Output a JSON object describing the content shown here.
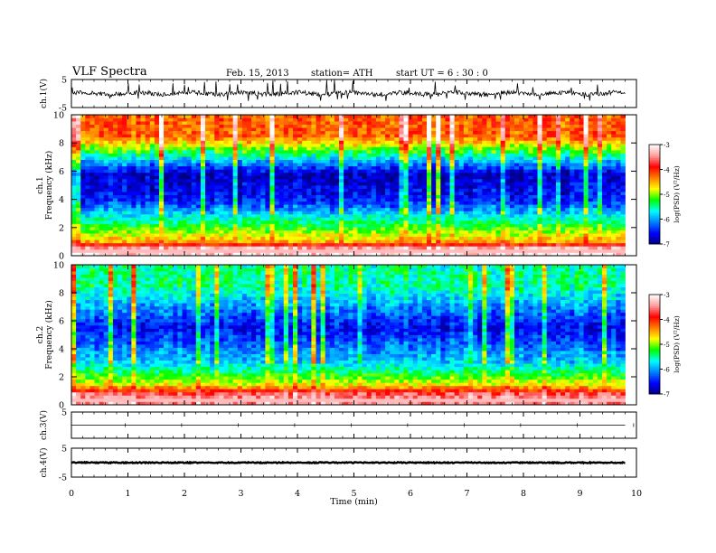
{
  "header": {
    "title": "VLF  Spectra",
    "date": "Feb. 15, 2013",
    "station": "station= ATH",
    "start": "start  UT  =    6   : 30 : 0"
  },
  "colors": {
    "trace": "#000000",
    "colormap": [
      "#000080",
      "#0000ff",
      "#0080ff",
      "#00ffff",
      "#00ff00",
      "#ffff00",
      "#ff8000",
      "#ff0000",
      "#ff9a9a",
      "#ffffff"
    ]
  },
  "chart_data": [
    {
      "type": "line",
      "panel": "ch1",
      "ylabel": "ch.1(V)",
      "ylim": [
        -5,
        5
      ],
      "yticks": [
        "5",
        "-5"
      ],
      "baseline": 0,
      "note_values": "noisy waveform around 0 V with spikes up to ~+5 V"
    },
    {
      "type": "heatmap",
      "panel": "ch1-spectrogram",
      "channel_label": "ch.1",
      "ylabel": "Frequency  (kHz)",
      "ylim": [
        0,
        10
      ],
      "yticks": [
        "0",
        "2",
        "4",
        "6",
        "8",
        "10"
      ],
      "colorbar": {
        "label": "log(PSD) (V²/Hz)",
        "ticks": [
          "-3",
          "-4",
          "-5",
          "-6",
          "-7"
        ],
        "range": [
          -7,
          -3
        ]
      },
      "bands_khz_level": [
        [
          0.5,
          -3.2
        ],
        [
          1.0,
          -4.5
        ],
        [
          2.5,
          -5.5
        ],
        [
          4.0,
          -6.5
        ],
        [
          5.8,
          -6.8
        ],
        [
          8.5,
          -4.2
        ]
      ]
    },
    {
      "type": "heatmap",
      "panel": "ch2-spectrogram",
      "channel_label": "ch.2",
      "ylabel": "Frequency  (kHz)",
      "ylim": [
        0,
        10
      ],
      "yticks": [
        "0",
        "2",
        "4",
        "6",
        "8",
        "10"
      ],
      "colorbar": {
        "label": "log(PSD) (V²/Hz)",
        "ticks": [
          "-3",
          "-4",
          "-5",
          "-6",
          "-7"
        ],
        "range": [
          -7,
          -3
        ]
      },
      "bands_khz_level": [
        [
          0.7,
          -3.5
        ],
        [
          1.5,
          -4.8
        ],
        [
          3.0,
          -5.8
        ],
        [
          5.5,
          -6.6
        ],
        [
          8.5,
          -5.5
        ]
      ]
    },
    {
      "type": "line",
      "panel": "ch3",
      "ylabel": "ch.3(V)",
      "ylim": [
        -5,
        5
      ],
      "yticks": [
        "5"
      ],
      "baseline": 0
    },
    {
      "type": "line",
      "panel": "ch4",
      "ylabel": "ch.4(V)",
      "ylim": [
        -5,
        5
      ],
      "yticks": [
        "5",
        "-5"
      ],
      "baseline": 0
    }
  ],
  "xaxis": {
    "label": "Time  (min)",
    "xlim": [
      0,
      10
    ],
    "ticks": [
      "0",
      "1",
      "2",
      "3",
      "4",
      "5",
      "6",
      "7",
      "8",
      "9",
      "10"
    ],
    "data_end": 9.8
  }
}
